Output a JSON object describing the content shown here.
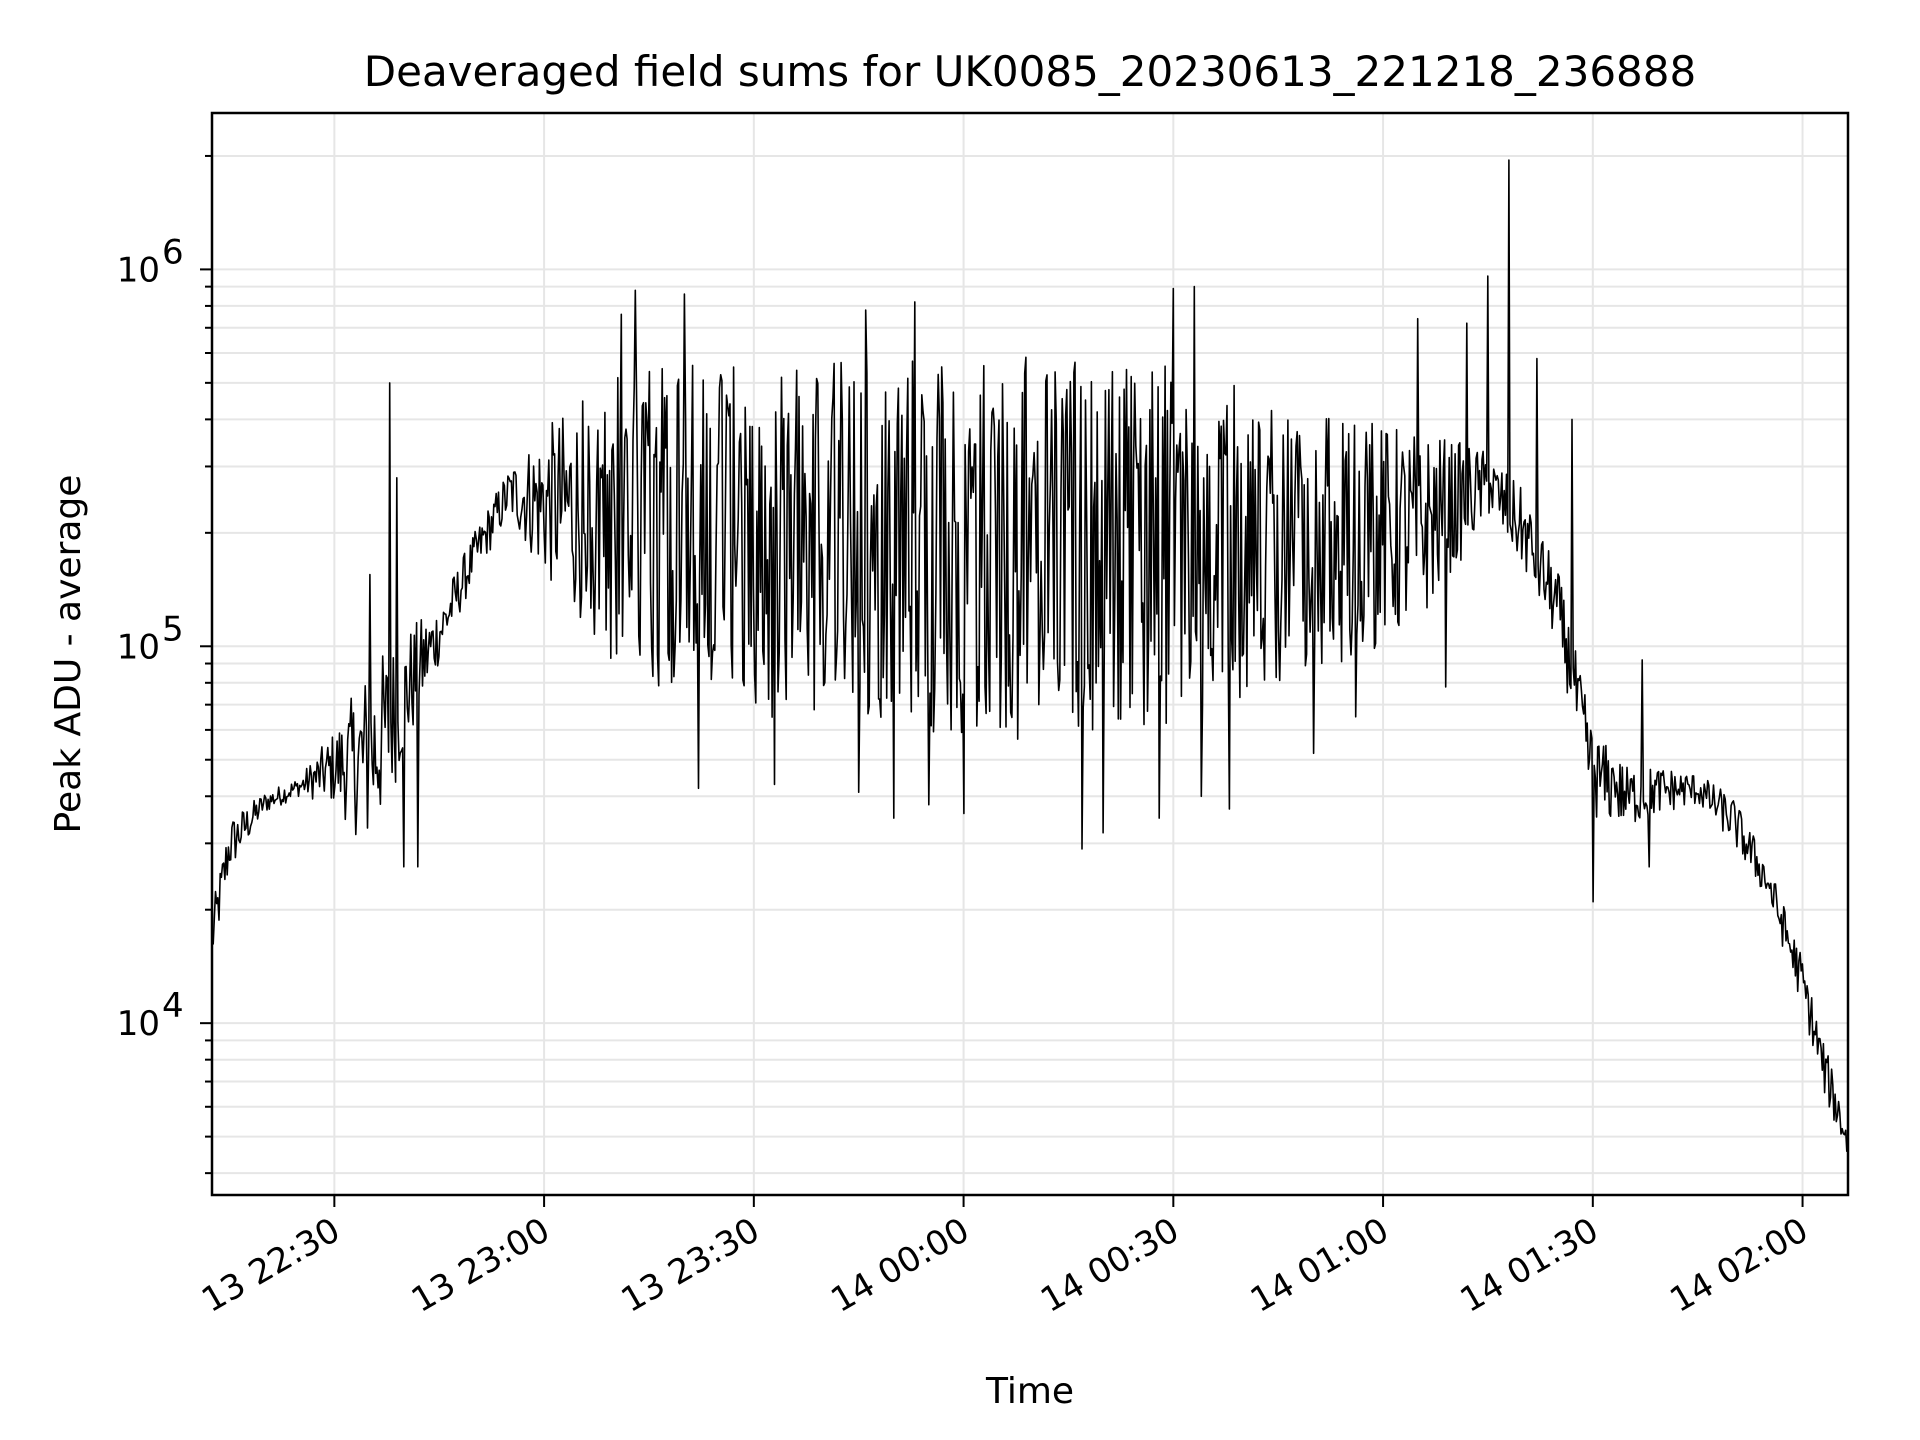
{
  "chart_data": {
    "type": "line",
    "title": "Deaveraged field sums for UK0085_20230613_221218_236888",
    "xlabel": "Time",
    "ylabel": "Peak ADU - average",
    "yscale": "log",
    "ylim": [
      3500,
      2600000
    ],
    "xlim": [
      "2023-06-13 22:12:30",
      "2023-06-14 02:06:30"
    ],
    "x_ticks": [
      "13 22:30",
      "13 23:00",
      "13 23:30",
      "14 00:00",
      "14 00:30",
      "14 01:00",
      "14 01:30",
      "14 02:00"
    ],
    "y_ticks": [
      {
        "value": 10000,
        "base": "10",
        "exp": "4"
      },
      {
        "value": 100000,
        "base": "10",
        "exp": "5"
      },
      {
        "value": 1000000,
        "base": "10",
        "exp": "6"
      }
    ],
    "grid": true,
    "line_color": "#000000",
    "grid_color": "#e6e6e6",
    "series": [
      {
        "envelope": [
          {
            "t": "2023-06-13 22:12:30",
            "low": 14000,
            "high": 20000
          },
          {
            "t": "2023-06-13 22:15:00",
            "low": 25000,
            "high": 35000
          },
          {
            "t": "2023-06-13 22:20:00",
            "low": 36000,
            "high": 41000
          },
          {
            "t": "2023-06-13 22:25:00",
            "low": 40000,
            "high": 45000
          },
          {
            "t": "2023-06-13 22:30:00",
            "low": 38000,
            "high": 60000
          },
          {
            "t": "2023-06-13 22:35:00",
            "low": 28000,
            "high": 90000
          },
          {
            "t": "2023-06-13 22:40:00",
            "low": 50000,
            "high": 110000
          },
          {
            "t": "2023-06-13 22:45:00",
            "low": 90000,
            "high": 130000
          },
          {
            "t": "2023-06-13 22:50:00",
            "low": 150000,
            "high": 200000
          },
          {
            "t": "2023-06-13 22:55:00",
            "low": 220000,
            "high": 300000
          },
          {
            "t": "2023-06-13 23:00:00",
            "low": 150000,
            "high": 380000
          },
          {
            "t": "2023-06-13 23:05:00",
            "low": 120000,
            "high": 450000
          },
          {
            "t": "2023-06-13 23:10:00",
            "low": 90000,
            "high": 550000
          },
          {
            "t": "2023-06-13 23:20:00",
            "low": 70000,
            "high": 560000
          },
          {
            "t": "2023-06-14 00:00:00",
            "low": 55000,
            "high": 600000
          },
          {
            "t": "2023-06-14 00:30:00",
            "low": 60000,
            "high": 560000
          },
          {
            "t": "2023-06-14 00:45:00",
            "low": 80000,
            "high": 450000
          },
          {
            "t": "2023-06-14 00:55:00",
            "low": 90000,
            "high": 400000
          },
          {
            "t": "2023-06-14 01:05:00",
            "low": 110000,
            "high": 380000
          },
          {
            "t": "2023-06-14 01:15:00",
            "low": 220000,
            "high": 330000
          },
          {
            "t": "2023-06-14 01:20:00",
            "low": 160000,
            "high": 260000
          },
          {
            "t": "2023-06-14 01:25:00",
            "low": 100000,
            "high": 160000
          },
          {
            "t": "2023-06-14 01:30:00",
            "low": 35000,
            "high": 60000
          },
          {
            "t": "2023-06-14 01:35:00",
            "low": 33000,
            "high": 48000
          },
          {
            "t": "2023-06-14 01:40:00",
            "low": 36000,
            "high": 48000
          },
          {
            "t": "2023-06-14 01:45:00",
            "low": 38000,
            "high": 46000
          },
          {
            "t": "2023-06-14 01:50:00",
            "low": 30000,
            "high": 40000
          },
          {
            "t": "2023-06-14 01:55:00",
            "low": 21000,
            "high": 27000
          },
          {
            "t": "2023-06-14 02:00:00",
            "low": 11000,
            "high": 15000
          },
          {
            "t": "2023-06-14 02:03:00",
            "low": 6500,
            "high": 9000
          },
          {
            "t": "2023-06-14 02:06:30",
            "low": 4300,
            "high": 5500
          }
        ],
        "spikes": [
          {
            "t": "2023-06-13 22:38:00",
            "v": 500000
          },
          {
            "t": "2023-06-13 22:39:00",
            "v": 280000
          },
          {
            "t": "2023-06-13 22:40:00",
            "v": 26000
          },
          {
            "t": "2023-06-13 22:42:00",
            "v": 26000
          },
          {
            "t": "2023-06-13 22:35:00",
            "v": 155000
          },
          {
            "t": "2023-06-13 23:13:00",
            "v": 880000
          },
          {
            "t": "2023-06-13 23:11:00",
            "v": 760000
          },
          {
            "t": "2023-06-13 23:20:00",
            "v": 860000
          },
          {
            "t": "2023-06-13 23:22:00",
            "v": 42000
          },
          {
            "t": "2023-06-13 23:33:00",
            "v": 43000
          },
          {
            "t": "2023-06-13 23:45:00",
            "v": 41000
          },
          {
            "t": "2023-06-13 23:46:00",
            "v": 780000
          },
          {
            "t": "2023-06-13 23:50:00",
            "v": 35000
          },
          {
            "t": "2023-06-13 23:53:00",
            "v": 820000
          },
          {
            "t": "2023-06-13 23:55:00",
            "v": 38000
          },
          {
            "t": "2023-06-14 00:00:00",
            "v": 36000
          },
          {
            "t": "2023-06-14 00:17:00",
            "v": 29000
          },
          {
            "t": "2023-06-14 00:20:00",
            "v": 32000
          },
          {
            "t": "2023-06-14 00:30:00",
            "v": 890000
          },
          {
            "t": "2023-06-14 00:28:00",
            "v": 35000
          },
          {
            "t": "2023-06-14 00:33:00",
            "v": 900000
          },
          {
            "t": "2023-06-14 00:34:00",
            "v": 40000
          },
          {
            "t": "2023-06-14 00:38:00",
            "v": 37000
          },
          {
            "t": "2023-06-14 00:50:00",
            "v": 52000
          },
          {
            "t": "2023-06-14 00:56:00",
            "v": 65000
          },
          {
            "t": "2023-06-14 01:05:00",
            "v": 740000
          },
          {
            "t": "2023-06-14 01:09:00",
            "v": 78000
          },
          {
            "t": "2023-06-14 01:12:00",
            "v": 720000
          },
          {
            "t": "2023-06-14 01:15:00",
            "v": 960000
          },
          {
            "t": "2023-06-14 01:18:00",
            "v": 1950000
          },
          {
            "t": "2023-06-14 01:22:00",
            "v": 580000
          },
          {
            "t": "2023-06-14 01:27:00",
            "v": 400000
          },
          {
            "t": "2023-06-14 01:30:00",
            "v": 21000
          },
          {
            "t": "2023-06-14 01:33:00",
            "v": 45000
          },
          {
            "t": "2023-06-14 01:37:00",
            "v": 92000
          },
          {
            "t": "2023-06-14 01:38:00",
            "v": 26000
          }
        ]
      }
    ]
  }
}
